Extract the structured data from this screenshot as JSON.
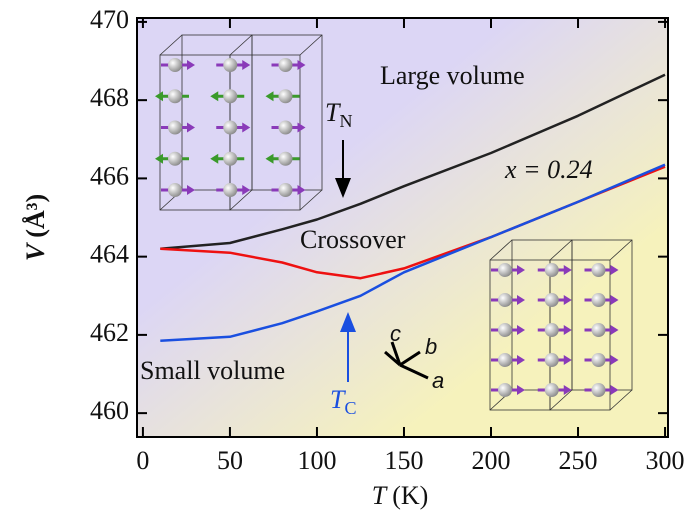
{
  "chart_data": {
    "type": "line",
    "x_label": {
      "variable": "T",
      "unit": "(K)"
    },
    "y_label": {
      "variable": "V",
      "unit": "(Å³)"
    },
    "x": [
      10,
      50,
      80,
      100,
      125,
      150,
      200,
      250,
      300
    ],
    "series": [
      {
        "name": "Large volume",
        "color": "#222222",
        "values": [
          464.2,
          464.35,
          464.7,
          464.95,
          465.35,
          465.8,
          466.65,
          467.6,
          468.65
        ]
      },
      {
        "name": "Crossover",
        "color": "#ee1111",
        "values": [
          464.2,
          464.1,
          463.85,
          463.6,
          463.45,
          463.7,
          464.5,
          465.4,
          466.3
        ]
      },
      {
        "name": "Small volume",
        "color": "#1a4fe0",
        "values": [
          461.85,
          461.95,
          462.3,
          462.6,
          463.0,
          463.6,
          464.5,
          465.4,
          466.35
        ]
      }
    ],
    "xlim": [
      -3.4,
      301.7
    ],
    "ylim": [
      459.39,
      470.1
    ],
    "xticks": [
      0,
      50,
      100,
      150,
      200,
      250,
      300
    ],
    "yticks": [
      460,
      462,
      464,
      466,
      468,
      470
    ],
    "annotations": {
      "composition": "x = 0.24",
      "neel": {
        "symbol": "T",
        "sub": "N"
      },
      "curie": {
        "symbol": "T",
        "sub": "C"
      },
      "axes": [
        "c",
        "b",
        "a"
      ]
    }
  }
}
